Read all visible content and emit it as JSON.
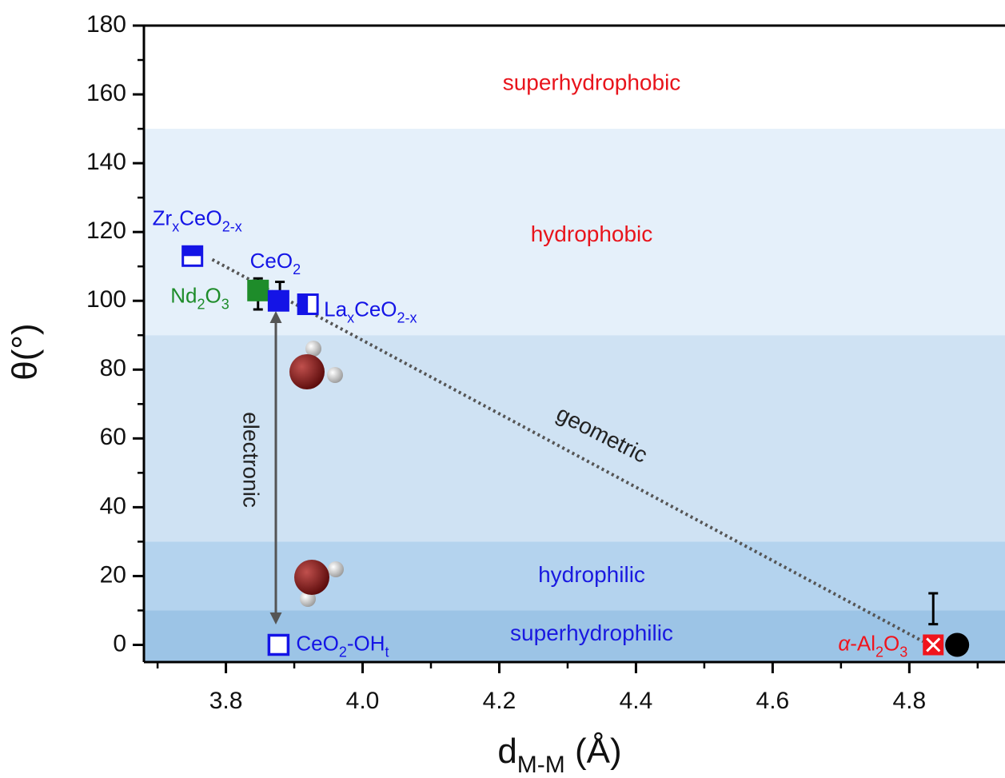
{
  "chart_data": {
    "type": "scatter",
    "x_label": [
      {
        "t": "d"
      },
      {
        "t": "M-M",
        "sub": true
      },
      {
        "t": " (Å)"
      }
    ],
    "y_label": "θ(°)",
    "xlim": [
      3.68,
      4.94
    ],
    "ylim": [
      -5,
      180
    ],
    "xticks": [
      3.8,
      {
        "value": 4,
        "label": "4.0"
      },
      4.2,
      4.4,
      4.6,
      4.8
    ],
    "yticks": [
      0,
      20,
      40,
      60,
      80,
      100,
      120,
      140,
      160,
      180
    ],
    "regions": [
      {
        "range": [
          150,
          180
        ],
        "color": "#ffffff",
        "label": "superhydrophobic",
        "label_color": "#e8141c",
        "label_y": 163
      },
      {
        "range": [
          90,
          150
        ],
        "color": "#e5f0fa",
        "label": "hydrophobic",
        "label_color": "#e8141c",
        "label_y": 119
      },
      {
        "range": [
          30,
          90
        ],
        "color": "#cfe2f3",
        "label": null
      },
      {
        "range": [
          10,
          30
        ],
        "color": "#b4d3ee",
        "label": "hydrophilic",
        "label_color": "#1a1ae0",
        "label_y": 20
      },
      {
        "range": [
          -5,
          10
        ],
        "color": "#9cc4e6",
        "label": "superhydrophilic",
        "label_color": "#1a1ae0",
        "label_y": 3
      }
    ],
    "points": [
      {
        "label": [
          {
            "t": "Zr"
          },
          {
            "t": "x",
            "sub": true
          },
          {
            "t": "CeO"
          },
          {
            "t": "2-x",
            "sub": true
          }
        ],
        "x": 3.751,
        "y": 113,
        "marker": "half-top",
        "color": "#1414e6"
      },
      {
        "label": [
          {
            "t": "Nd"
          },
          {
            "t": "2",
            "sub": true
          },
          {
            "t": "O"
          },
          {
            "t": "3",
            "sub": true
          }
        ],
        "x": 3.847,
        "y": 103,
        "marker": "filled",
        "color": "#1e8c2a"
      },
      {
        "label": [
          {
            "t": "CeO"
          },
          {
            "t": "2",
            "sub": true
          }
        ],
        "x": 3.877,
        "y": 100,
        "marker": "filled",
        "color": "#1414e6"
      },
      {
        "label": [
          {
            "t": "La"
          },
          {
            "t": "x",
            "sub": true
          },
          {
            "t": "CeO"
          },
          {
            "t": "2-x",
            "sub": true
          }
        ],
        "x": 3.92,
        "y": 99,
        "marker": "half-left",
        "color": "#1414e6"
      },
      {
        "label": [
          {
            "t": "CeO"
          },
          {
            "t": "2",
            "sub": true
          },
          {
            "t": "-OH"
          },
          {
            "t": "t",
            "sub": true
          }
        ],
        "x": 3.877,
        "y": 0,
        "marker": "open",
        "color": "#1414e6"
      },
      {
        "label": [
          {
            "t": "α",
            "italic": true
          },
          {
            "t": "-Al"
          },
          {
            "t": "2",
            "sub": true
          },
          {
            "t": "O"
          },
          {
            "t": "3",
            "sub": true
          }
        ],
        "x": 4.835,
        "y": 0,
        "marker": "cross",
        "color": "#f0141c"
      },
      {
        "label": null,
        "x": 4.87,
        "y": 0,
        "marker": "circle",
        "color": "#000000"
      }
    ],
    "error_bars": [
      {
        "x": 3.847,
        "y": 102,
        "err": 4.5
      },
      {
        "x": 3.879,
        "y": 102.5,
        "err": 3
      },
      {
        "x": 4.835,
        "y": 10.5,
        "err": 4.5
      }
    ],
    "trend": {
      "label": "geometric",
      "x": [
        3.78,
        4.82
      ],
      "y": [
        112,
        1
      ]
    },
    "arrow_label": "electronic"
  }
}
